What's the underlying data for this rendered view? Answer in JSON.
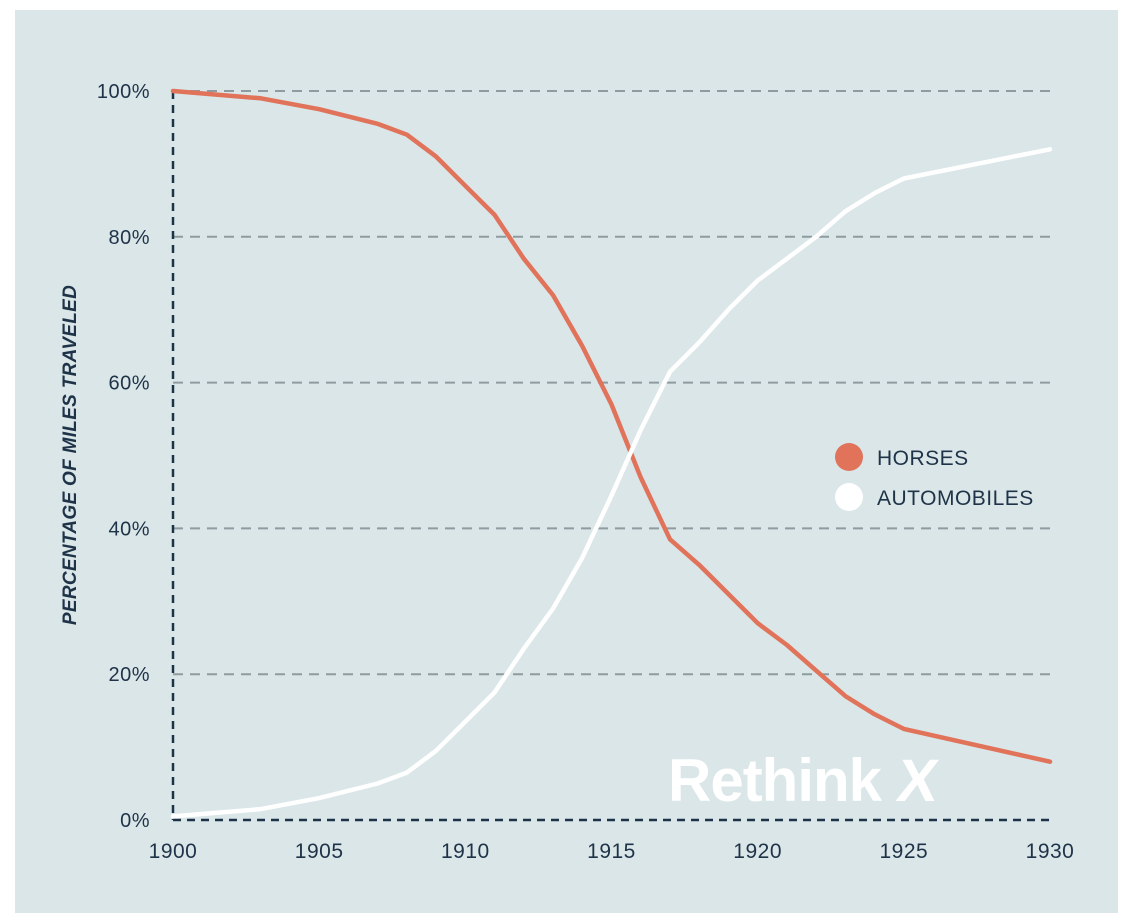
{
  "chart_data": {
    "type": "line",
    "title": "",
    "xlabel": "",
    "ylabel": "PERCENTAGE OF MILES TRAVELED",
    "xlim": [
      1900,
      1930
    ],
    "ylim": [
      0,
      100
    ],
    "x_ticks": [
      {
        "value": 1900,
        "label": "1900"
      },
      {
        "value": 1905,
        "label": "1905"
      },
      {
        "value": 1910,
        "label": "1910"
      },
      {
        "value": 1915,
        "label": "1915"
      },
      {
        "value": 1920,
        "label": "1920"
      },
      {
        "value": 1925,
        "label": "1925"
      },
      {
        "value": 1930,
        "label": "1930"
      }
    ],
    "y_ticks": [
      {
        "value": 0,
        "label": "0%"
      },
      {
        "value": 20,
        "label": "20%"
      },
      {
        "value": 40,
        "label": "40%"
      },
      {
        "value": 60,
        "label": "60%"
      },
      {
        "value": 80,
        "label": "80%"
      },
      {
        "value": 100,
        "label": "100%"
      }
    ],
    "grid": "horizontal dashed",
    "legend_position": "right-middle",
    "series": [
      {
        "name": "HORSES",
        "color": "#e0735a",
        "x": [
          1900,
          1903,
          1905,
          1907,
          1908,
          1909,
          1910,
          1911,
          1912,
          1913,
          1914,
          1915,
          1916,
          1917,
          1918,
          1919,
          1920,
          1921,
          1922,
          1923,
          1924,
          1925,
          1930
        ],
        "values": [
          100,
          99,
          97.5,
          95.5,
          94,
          91,
          87,
          83,
          77,
          72,
          65,
          57,
          47,
          38.5,
          35,
          31,
          27,
          24,
          20.5,
          17,
          14.5,
          12.5,
          8
        ]
      },
      {
        "name": "AUTOMOBILES",
        "color": "#ffffff",
        "x": [
          1900,
          1903,
          1905,
          1907,
          1908,
          1909,
          1910,
          1911,
          1912,
          1913,
          1914,
          1915,
          1916,
          1917,
          1918,
          1919,
          1920,
          1921,
          1922,
          1923,
          1924,
          1925,
          1930
        ],
        "values": [
          0.5,
          1.5,
          3,
          5,
          6.5,
          9.5,
          13.5,
          17.5,
          23.5,
          29,
          36,
          44.5,
          53.5,
          61.5,
          65.5,
          70,
          74,
          77,
          80,
          83.5,
          86,
          88,
          92
        ]
      }
    ]
  },
  "logo": {
    "text": "Rethink",
    "mark": "X"
  },
  "colors": {
    "background": "#dae6e8",
    "axis": "#1f3348",
    "grid": "#8e9ba0"
  }
}
